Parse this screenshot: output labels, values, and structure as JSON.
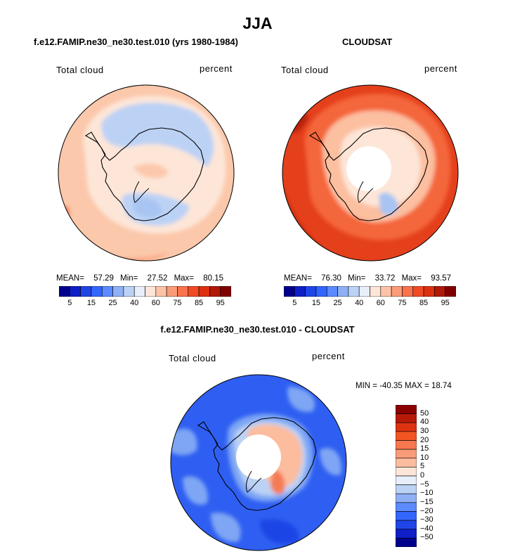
{
  "figure": {
    "title": "JJA",
    "top_left": {
      "title": "f.e12.FAMIP.ne30_ne30.test.010 (yrs 1980-1984)",
      "variable": "Total cloud",
      "units": "percent",
      "stats": {
        "mean_label": "MEAN=",
        "mean": "57.29",
        "min_label": "Min=",
        "min": "27.52",
        "max_label": "Max=",
        "max": "80.15"
      }
    },
    "top_right": {
      "title": "CLOUDSAT",
      "variable": "Total cloud",
      "units": "percent",
      "stats": {
        "mean_label": "MEAN=",
        "mean": "76.30",
        "min_label": "Min=",
        "min": "33.72",
        "max_label": "Max=",
        "max": "93.57"
      }
    },
    "bottom": {
      "title": "f.e12.FAMIP.ne30_ne30.test.010 - CLOUDSAT",
      "variable": "Total cloud",
      "units": "percent",
      "minmax": "MIN = -40.35 MAX =  18.74"
    },
    "colorbar_horizontal": {
      "colors": [
        "#00008b",
        "#0f1fc7",
        "#1f45e6",
        "#3366ff",
        "#5c8aff",
        "#8fb0f5",
        "#bcd2f5",
        "#e8eefa",
        "#fde6d8",
        "#fcc3a7",
        "#fa9c78",
        "#f8734e",
        "#f04a25",
        "#dc3010",
        "#b01808",
        "#800000"
      ],
      "ticks": [
        "5",
        "15",
        "25",
        "40",
        "60",
        "75",
        "85",
        "95"
      ]
    },
    "colorbar_vertical": {
      "colors": [
        "#8b0000",
        "#b81a08",
        "#dd3310",
        "#f25522",
        "#f6784f",
        "#f99b78",
        "#fcbc9e",
        "#fde6d8",
        "#e8eefa",
        "#bcd2f5",
        "#8fb0f5",
        "#5c8aff",
        "#3366ff",
        "#1f45e6",
        "#0f1fc7",
        "#00008b"
      ],
      "ticks": [
        "50",
        "40",
        "30",
        "20",
        "15",
        "10",
        "5",
        "0",
        "−5",
        "−10",
        "−15",
        "−20",
        "−30",
        "−40",
        "−50"
      ]
    },
    "map_colors": {
      "model_base": "#fcc8ab",
      "model_light": "#fde6d8",
      "model_mid": "#f9a582",
      "model_dark": "#f47c55",
      "model_blue": "#bcd2f5",
      "model_blue2": "#a8c4f2",
      "obs_base": "#e4401c",
      "obs_mid": "#f4663a",
      "obs_dark": "#b82010",
      "obs_light": "#fcbfa0",
      "obs_pale": "#fde6d8",
      "diff_base": "#2f5ff2",
      "diff_light": "#7ea6f4",
      "diff_pale": "#bcd2f5",
      "diff_dark": "#1f45e6",
      "diff_warm": "#fcbc9e",
      "diff_hot": "#f47c55"
    }
  }
}
